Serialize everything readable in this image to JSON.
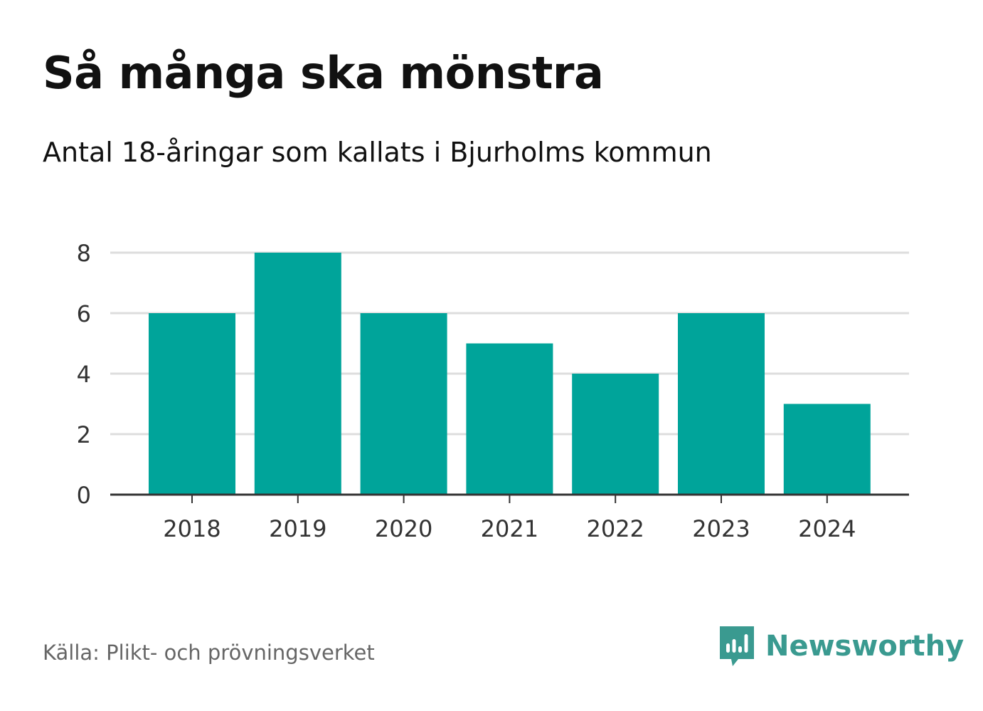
{
  "title": "Så många ska mönstra",
  "subtitle": "Antal 18-åringar som kallats i Bjurholms kommun",
  "source": "Källa: Plikt- och prövningsverket",
  "brand": {
    "name": "Newsworthy",
    "icon": "newsworthy-logo-icon",
    "color": "#3a9a90"
  },
  "colors": {
    "bar": "#00a49a",
    "grid": "#dddddd",
    "axis": "#333333",
    "text": "#333333"
  },
  "chart_data": {
    "type": "bar",
    "categories": [
      "2018",
      "2019",
      "2020",
      "2021",
      "2022",
      "2023",
      "2024"
    ],
    "values": [
      6,
      8,
      6,
      5,
      4,
      6,
      3
    ],
    "title": "Så många ska mönstra",
    "subtitle": "Antal 18-åringar som kallats i Bjurholms kommun",
    "ylim": [
      0,
      8
    ],
    "yticks": [
      0,
      2,
      4,
      6,
      8
    ],
    "grid": true,
    "legend": "none"
  }
}
